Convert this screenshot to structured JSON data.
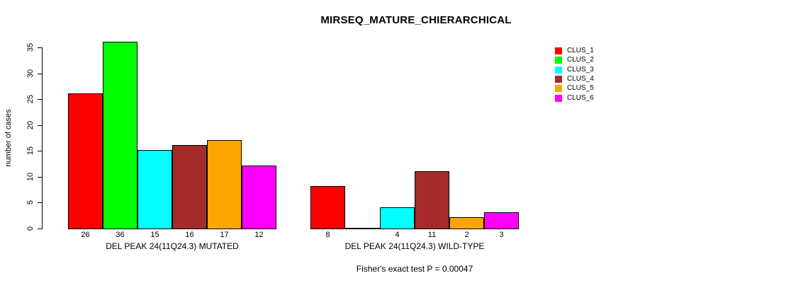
{
  "chart_data": {
    "type": "bar",
    "title": "MIRSEQ_MATURE_CHIERARCHICAL",
    "ylabel": "number of cases",
    "yticks": [
      0,
      5,
      10,
      15,
      20,
      25,
      30,
      35
    ],
    "ylim": [
      0,
      36
    ],
    "grid": false,
    "legend_position": "right",
    "legend": [
      {
        "label": "CLUS_1",
        "color": "#FF0000"
      },
      {
        "label": "CLUS_2",
        "color": "#00FF00"
      },
      {
        "label": "CLUS_3",
        "color": "#00FFFF"
      },
      {
        "label": "CLUS_4",
        "color": "#A52A2A"
      },
      {
        "label": "CLUS_5",
        "color": "#FFA500"
      },
      {
        "label": "CLUS_6",
        "color": "#FF00FF"
      }
    ],
    "series_colors": [
      "#FF0000",
      "#00FF00",
      "#00FFFF",
      "#A52A2A",
      "#FFA500",
      "#FF00FF"
    ],
    "groups": [
      {
        "label": "DEL PEAK 24(11Q24.3) MUTATED",
        "values": [
          26,
          36,
          15,
          16,
          17,
          12
        ],
        "value_labels": [
          "26",
          "36",
          "15",
          "16",
          "17",
          "12"
        ]
      },
      {
        "label": "DEL PEAK 24(11Q24.3) WILD-TYPE",
        "values": [
          8,
          0,
          4,
          11,
          2,
          3
        ],
        "value_labels": [
          "8",
          "",
          "4",
          "11",
          "2",
          "3"
        ]
      }
    ],
    "annotation": "Fisher's exact test P = 0.00047"
  }
}
